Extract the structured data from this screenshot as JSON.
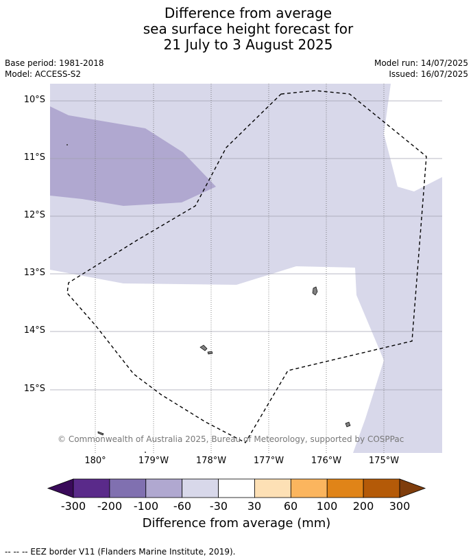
{
  "title": {
    "line1": "Difference from average",
    "line2": "sea surface height forecast for",
    "line3": "21 July to 3 August 2025"
  },
  "meta": {
    "base_period": "Base period: 1981-2018",
    "model": "Model: ACCESS-S2",
    "model_run": "Model run: 14/07/2025",
    "issued": "Issued: 16/07/2025"
  },
  "lat_labels": [
    "10°S",
    "11°S",
    "12°S",
    "13°S",
    "14°S",
    "15°S"
  ],
  "lon_labels": [
    "180°",
    "179°W",
    "178°W",
    "177°W",
    "176°W",
    "175°W"
  ],
  "copyright": "© Commonwealth of Australia 2025, Bureau of Meteorology, supported by COSPPac",
  "colorbar": {
    "ticks": [
      "-300",
      "-200",
      "-100",
      "-60",
      "-30",
      "30",
      "60",
      "100",
      "200",
      "300"
    ],
    "colors": [
      "#5a2a8a",
      "#8070b0",
      "#b0a8d0",
      "#d8d8ea",
      "#ffffff",
      "#fde0b5",
      "#fbb55e",
      "#e08418",
      "#b45a08"
    ],
    "under_color": "#3a0a5a",
    "over_color": "#7f3d0c",
    "label": "Difference from average (mm)"
  },
  "footnote": "--  --  -- EEZ border V11 (Flanders Marine Institute, 2019).",
  "map_colors": {
    "light_band": "#d8d8ea",
    "mid_band": "#b0a8d0",
    "land": "#808080",
    "eez_line": "#000000"
  }
}
